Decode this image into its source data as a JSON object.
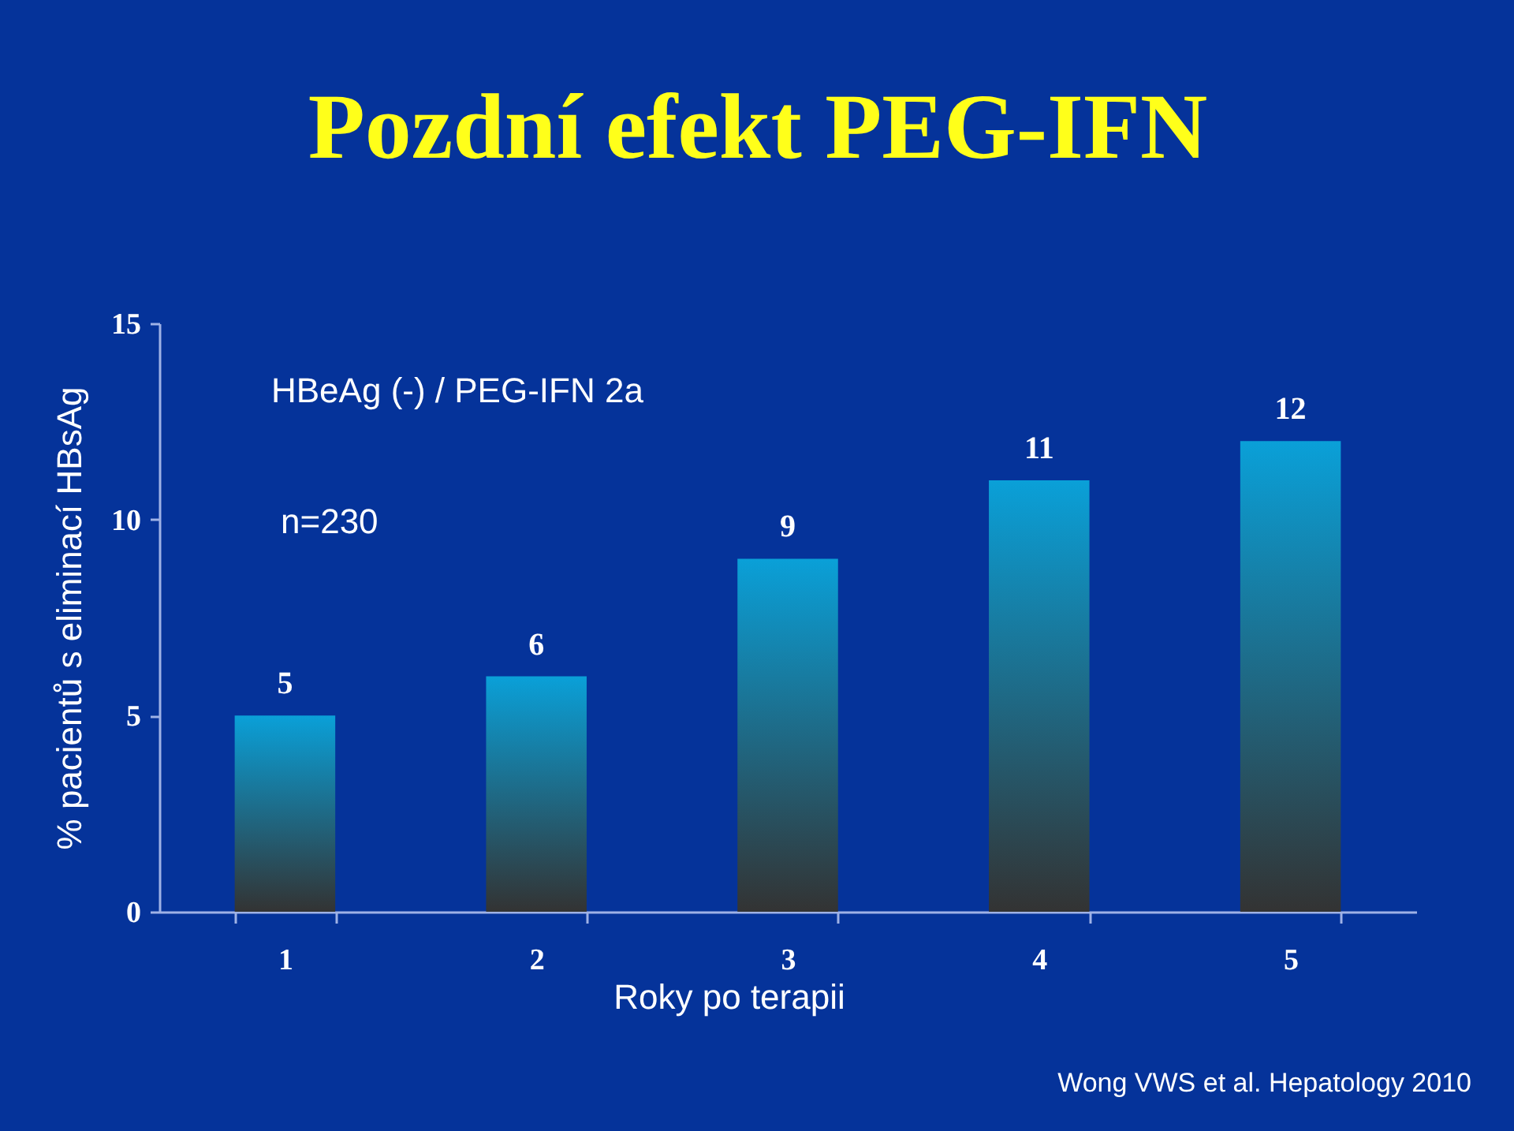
{
  "chart_data": {
    "type": "bar",
    "title": "Pozdní efekt PEG-IFN",
    "xlabel": "Roky po terapii",
    "ylabel": "% pacientů s eliminací HBsAg",
    "categories": [
      "1",
      "2",
      "3",
      "4",
      "5"
    ],
    "values": [
      5,
      6,
      9,
      11,
      12
    ],
    "color": "#0aa0d8",
    "ylim": [
      0,
      15
    ],
    "yticks": [
      0,
      5,
      10,
      15
    ],
    "grid": false,
    "data_labels": true,
    "annotations": [
      "HBeAg (-) / PEG-IFN 2a",
      "n=230",
      "Wong VWS et al. Hepatology 2010"
    ]
  }
}
